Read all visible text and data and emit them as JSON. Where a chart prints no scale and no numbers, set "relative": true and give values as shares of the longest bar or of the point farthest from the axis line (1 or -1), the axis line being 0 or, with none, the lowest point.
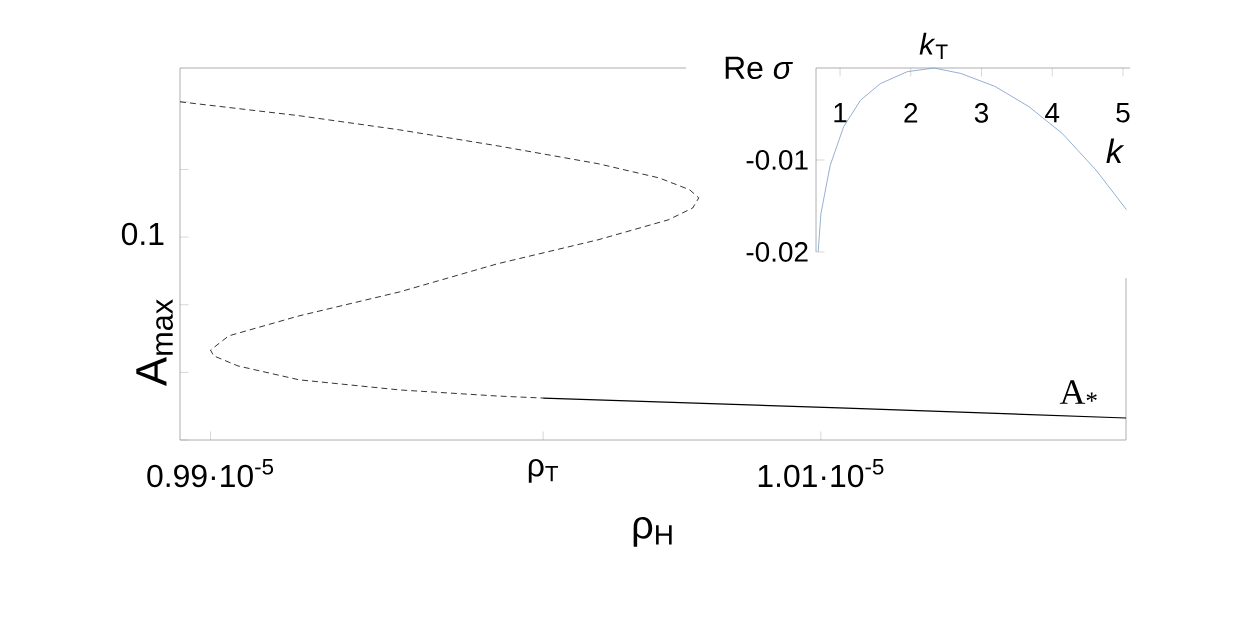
{
  "chart_data": [
    {
      "type": "line",
      "xlabel": "ρ$_{H}$",
      "ylabel": "A$_{max}$",
      "xlim": [
        9.89e-06,
        1.02e-05
      ],
      "relative": true,
      "annotations": [
        "0.1"
      ],
      "xticks": [
        {
          "value": 9.9e-06,
          "label": "0.99·10$^{-5}$"
        },
        {
          "value": 1.0009e-05,
          "label": "ρ$_{T}$"
        },
        {
          "value": 1.01e-05,
          "label": "1.01·10$^{-5}$"
        }
      ],
      "series": [
        {
          "color": "#000000",
          "line_style": "dashed",
          "x": [
            9.89e-06,
            9.929e-06,
            9.962e-06,
            9.994e-06,
            1.0027e-05,
            1.0047e-05,
            1.0057e-05,
            1.006e-05,
            1.0058e-05,
            1.005e-05,
            1.0027e-05,
            9.994e-06,
            9.962e-06,
            9.929e-06,
            9.906e-06,
            9.9e-06,
            9.901e-06,
            9.909e-06,
            9.929e-06,
            9.962e-06,
            9.994e-06,
            1.0009e-05
          ],
          "values": [
            1,
            0.959,
            0.917,
            0.87,
            0.817,
            0.775,
            0.74,
            0.716,
            0.686,
            0.651,
            0.592,
            0.521,
            0.438,
            0.367,
            0.308,
            0.266,
            0.249,
            0.219,
            0.178,
            0.148,
            0.13,
            0.124
          ]
        },
        {
          "name": "A$_{*}$",
          "color": "#000000",
          "line_style": "solid",
          "x": [
            1.0009e-05,
            1.0106e-05,
            1.02e-05
          ],
          "values": [
            0.124,
            0.095,
            0.065
          ]
        }
      ]
    },
    {
      "type": "line",
      "xlabel": "k",
      "ylabel": "Re *σ*",
      "xlim": [
        0.66,
        5.1
      ],
      "ylim": [
        -0.02,
        0
      ],
      "xticks": [
        1,
        2,
        3,
        4,
        5
      ],
      "yticks": [
        -0.01,
        -0.02
      ],
      "annotations": [
        {
          "text": "*k*$_{T}$",
          "x": 2.33,
          "y": 0
        }
      ],
      "series": [
        {
          "color": "#7a9cc8",
          "x": [
            0.69,
            0.73,
            0.86,
            1.05,
            1.29,
            1.57,
            1.95,
            2.33,
            2.71,
            3.19,
            3.67,
            4.14,
            4.62,
            5.05
          ],
          "values": [
            -0.02,
            -0.0158,
            -0.0106,
            -0.0064,
            -0.0035,
            -0.0017,
            -0.0004,
            0,
            -0.0006,
            -0.002,
            -0.0042,
            -0.0071,
            -0.0111,
            -0.0154
          ]
        }
      ]
    }
  ]
}
